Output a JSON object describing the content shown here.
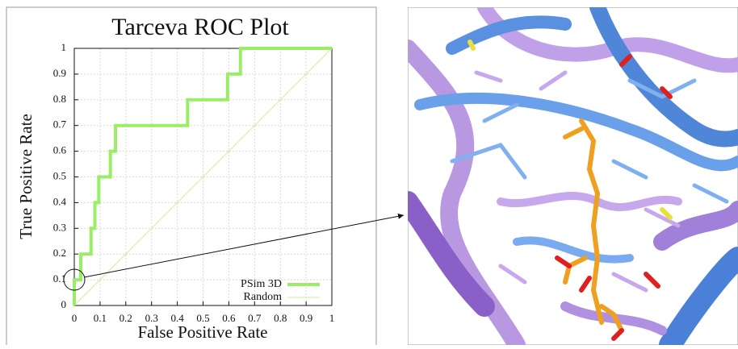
{
  "chart_data": {
    "type": "line",
    "title": "Tarceva ROC Plot",
    "xlabel": "False Positive Rate",
    "ylabel": "True Positive Rate",
    "xlim": [
      0,
      1
    ],
    "ylim": [
      0,
      1
    ],
    "xticks": [
      0,
      0.1,
      0.2,
      0.3,
      0.4,
      0.5,
      0.6,
      0.7,
      0.8,
      0.9,
      1
    ],
    "yticks": [
      0,
      0.1,
      0.2,
      0.3,
      0.4,
      0.5,
      0.6,
      0.7,
      0.8,
      0.9,
      1
    ],
    "grid": true,
    "legend": "lower right",
    "series": [
      {
        "name": "PSim 3D",
        "color": "#99ee66",
        "width": 4,
        "x": [
          0,
          0,
          0.025,
          0.025,
          0.065,
          0.065,
          0.08,
          0.08,
          0.095,
          0.095,
          0.14,
          0.14,
          0.16,
          0.16,
          0.44,
          0.44,
          0.595,
          0.595,
          0.645,
          0.645,
          1
        ],
        "values": [
          0,
          0.1,
          0.1,
          0.2,
          0.2,
          0.3,
          0.3,
          0.4,
          0.4,
          0.5,
          0.5,
          0.6,
          0.6,
          0.7,
          0.7,
          0.8,
          0.8,
          0.9,
          0.9,
          1,
          1
        ]
      },
      {
        "name": "Random",
        "color": "#c8f0a0",
        "width": 1,
        "x": [
          0,
          1
        ],
        "values": [
          0,
          1
        ]
      }
    ]
  }
}
